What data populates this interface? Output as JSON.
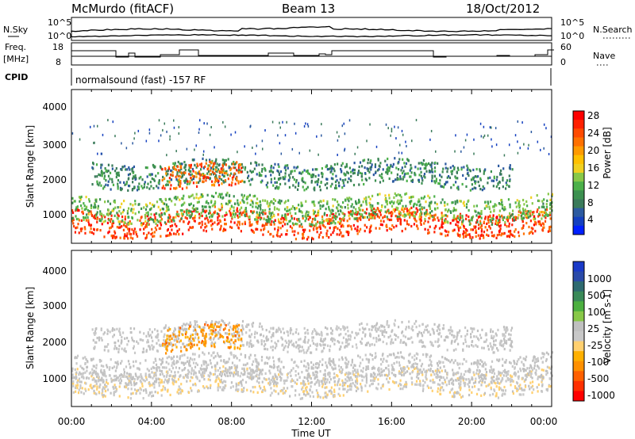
{
  "header": {
    "station": "McMurdo (fitACF)",
    "beam": "Beam 13",
    "date": "18/Oct/2012"
  },
  "top_panel": {
    "nsky_label": "N.Sky",
    "left_ticks": [
      "10^5",
      "10^0"
    ],
    "nsearch_label": "N.Search",
    "right_ticks": [
      "10^5",
      "10^0"
    ],
    "freq_label": "Freq.",
    "freq_unit": "[MHz]",
    "freq_ticks": [
      "18",
      "8"
    ],
    "nave_label": "Nave",
    "nave_ticks": [
      "60",
      "0"
    ],
    "cpid_label": "CPID",
    "cpid_text": "normalsound (fast) -157 RF"
  },
  "panels": [
    {
      "ylabel": "Slant Range [km]",
      "yticks": [
        "4000",
        "3000",
        "2000",
        "1000"
      ],
      "colorbar_title": "Power [dB]",
      "colorbar_ticks": [
        "28",
        "24",
        "20",
        "16",
        "12",
        "8",
        "4"
      ],
      "colors": [
        "#0020ff",
        "#1440c0",
        "#2c5aa0",
        "#3a7a5a",
        "#3c9050",
        "#4cb04a",
        "#88c848",
        "#f0d020",
        "#ffc000",
        "#ff9a00",
        "#ff7000",
        "#ff4a00",
        "#ff2000",
        "#ff0000"
      ]
    },
    {
      "ylabel": "Slant Range [km]",
      "yticks": [
        "4000",
        "3000",
        "2000",
        "1000"
      ],
      "colorbar_title": "Velocity [m s-1]",
      "colorbar_ticks": [
        "1000",
        "500",
        "100",
        "25",
        "-25",
        "-100",
        "-500",
        "-1000"
      ],
      "colors": [
        "#1a3ac8",
        "#2a4aa8",
        "#2e6a70",
        "#3a8a58",
        "#4cb040",
        "#88c848",
        "#c0c0c0",
        "#c8c8c8",
        "#ffd070",
        "#ffb000",
        "#ff9000",
        "#ff6000",
        "#ff3000",
        "#ff0000"
      ]
    }
  ],
  "xaxis": {
    "ticks": [
      "00:00",
      "04:00",
      "08:00",
      "12:00",
      "16:00",
      "20:00",
      "00:00"
    ],
    "label": "Time UT"
  },
  "chart_data": [
    {
      "type": "heatmap",
      "title": "Power [dB]",
      "xlabel": "Time UT",
      "ylabel": "Slant Range [km]",
      "x_range": [
        "00:00",
        "24:00"
      ],
      "ylim": [
        180,
        4600
      ],
      "colorbar_range": [
        0,
        30
      ],
      "bands": [
        {
          "center_km": 800,
          "start_h": 0.0,
          "end_h": 24.0,
          "value_db": 26
        },
        {
          "center_km": 1200,
          "start_h": 0.0,
          "end_h": 24.0,
          "value_db": 12
        },
        {
          "center_km": 2200,
          "start_h": 1.0,
          "end_h": 22.0,
          "value_db": 8
        },
        {
          "center_km": 2100,
          "start_h": 4.5,
          "end_h": 8.5,
          "value_db": 24
        }
      ]
    },
    {
      "type": "heatmap",
      "title": "Velocity [m s-1]",
      "xlabel": "Time UT",
      "ylabel": "Slant Range [km]",
      "x_range": [
        "00:00",
        "24:00"
      ],
      "ylim": [
        180,
        4600
      ],
      "colorbar_range": [
        -1000,
        1000
      ],
      "bands": [
        {
          "center_km": 900,
          "start_h": 0.0,
          "end_h": 24.0,
          "value_ms": -100
        },
        {
          "center_km": 1300,
          "start_h": 0.0,
          "end_h": 24.0,
          "value_ms": 0
        },
        {
          "center_km": 2200,
          "start_h": 1.0,
          "end_h": 22.0,
          "value_ms": 0
        },
        {
          "center_km": 2100,
          "start_h": 4.5,
          "end_h": 8.5,
          "value_ms": -500
        }
      ]
    }
  ]
}
